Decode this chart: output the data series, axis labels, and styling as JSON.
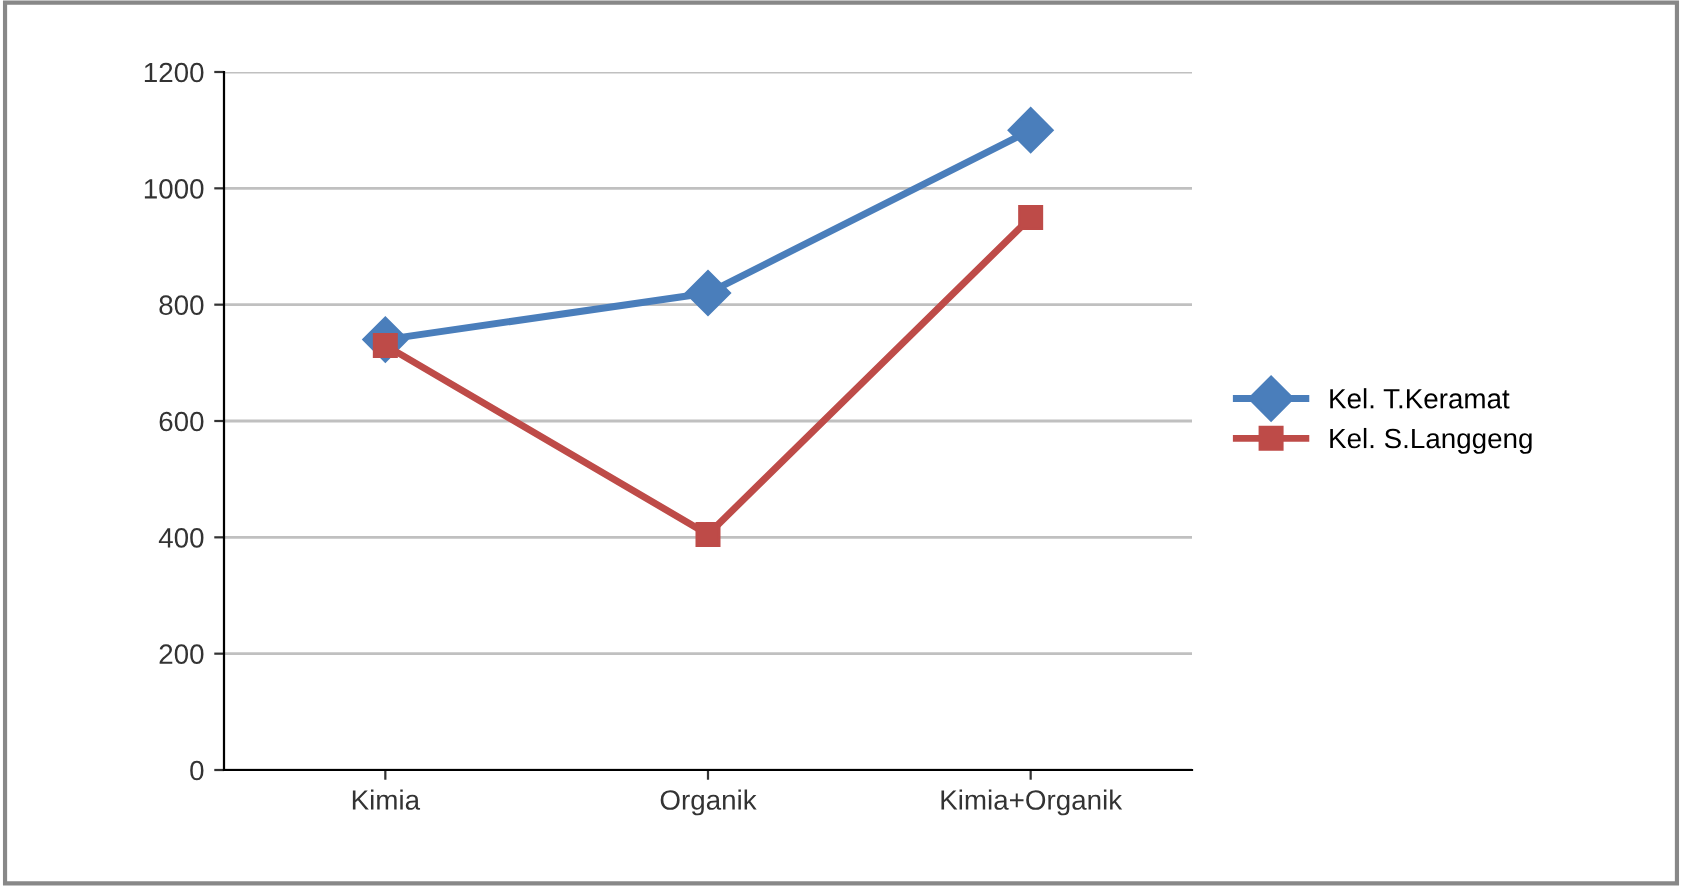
{
  "chart_data": {
    "type": "line",
    "categories": [
      "Kimia",
      "Organik",
      "Kimia+Organik"
    ],
    "series": [
      {
        "name": "Kel. T.Keramat",
        "color": "#4a7ebb",
        "marker": "diamond",
        "values": [
          740,
          820,
          1100
        ]
      },
      {
        "name": "Kel. S.Langgeng",
        "color": "#be4b48",
        "marker": "square",
        "values": [
          730,
          405,
          950
        ]
      }
    ],
    "ylim": [
      0,
      1200
    ],
    "yticks": [
      0,
      200,
      400,
      600,
      800,
      1000,
      1200
    ],
    "grid": "y",
    "legend": "right",
    "line_style": "solid"
  }
}
